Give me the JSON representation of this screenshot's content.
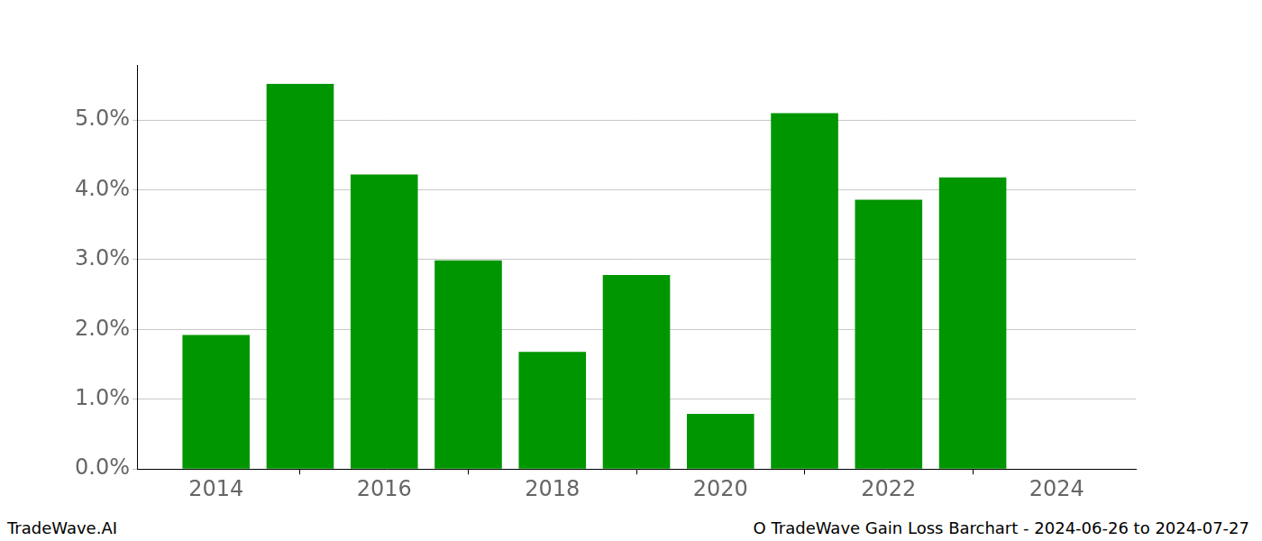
{
  "chart_data": {
    "type": "bar",
    "x": [
      2014,
      2015,
      2016,
      2017,
      2018,
      2019,
      2020,
      2021,
      2022,
      2023
    ],
    "values": [
      1.92,
      5.52,
      4.22,
      2.99,
      1.68,
      2.78,
      0.79,
      5.1,
      3.86,
      4.18
    ],
    "color": "#009600",
    "xlim": [
      2013.07,
      2024.94
    ],
    "xticks": [
      2014,
      2016,
      2018,
      2020,
      2022,
      2024
    ],
    "ylim": [
      0,
      5.79
    ],
    "yticks": [
      {
        "value": 0,
        "label": "0.0%"
      },
      {
        "value": 1,
        "label": "1.0%"
      },
      {
        "value": 2,
        "label": "2.0%"
      },
      {
        "value": 3,
        "label": "3.0%"
      },
      {
        "value": 4,
        "label": "4.0%"
      },
      {
        "value": 5,
        "label": "5.0%"
      }
    ],
    "grid": true,
    "footer_left": "TradeWave.AI",
    "footer_right": "O TradeWave Gain Loss Barchart - 2024-06-26 to 2024-07-27"
  }
}
